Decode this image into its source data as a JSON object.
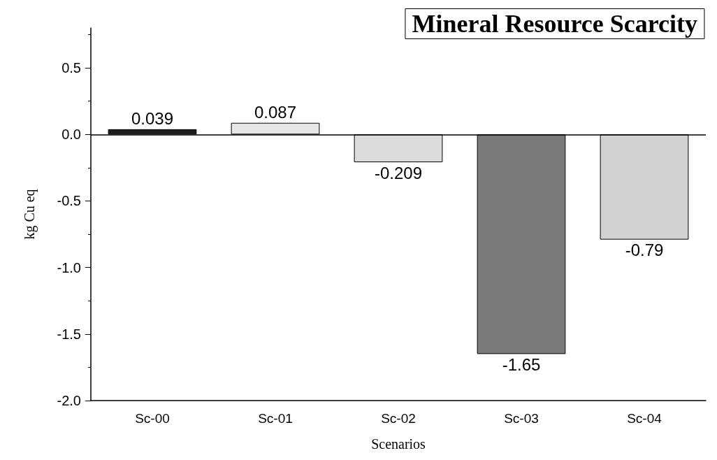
{
  "chart_data": {
    "type": "bar",
    "title": "Mineral Resource Scarcity",
    "xlabel": "Scenarios",
    "ylabel": "kg Cu eq",
    "categories": [
      "Sc-00",
      "Sc-01",
      "Sc-02",
      "Sc-03",
      "Sc-04"
    ],
    "values": [
      0.039,
      0.087,
      -0.209,
      -1.65,
      -0.79
    ],
    "colors": [
      "#1e1e1e",
      "#e6e6e6",
      "#dcdcdc",
      "#7a7a7a",
      "#d2d2d2"
    ],
    "ylim": [
      -2.0,
      0.8
    ],
    "yticks": [
      {
        "value": -2,
        "label": "-2.0"
      },
      -1.5,
      {
        "value": -1,
        "label": "-1.0"
      },
      -0.5,
      {
        "value": 0,
        "label": "0.0"
      },
      0.5
    ],
    "ref_lines": [
      {
        "axis": "y",
        "value": 0,
        "color": "#000000"
      }
    ],
    "data_labels": true,
    "grid": false
  }
}
